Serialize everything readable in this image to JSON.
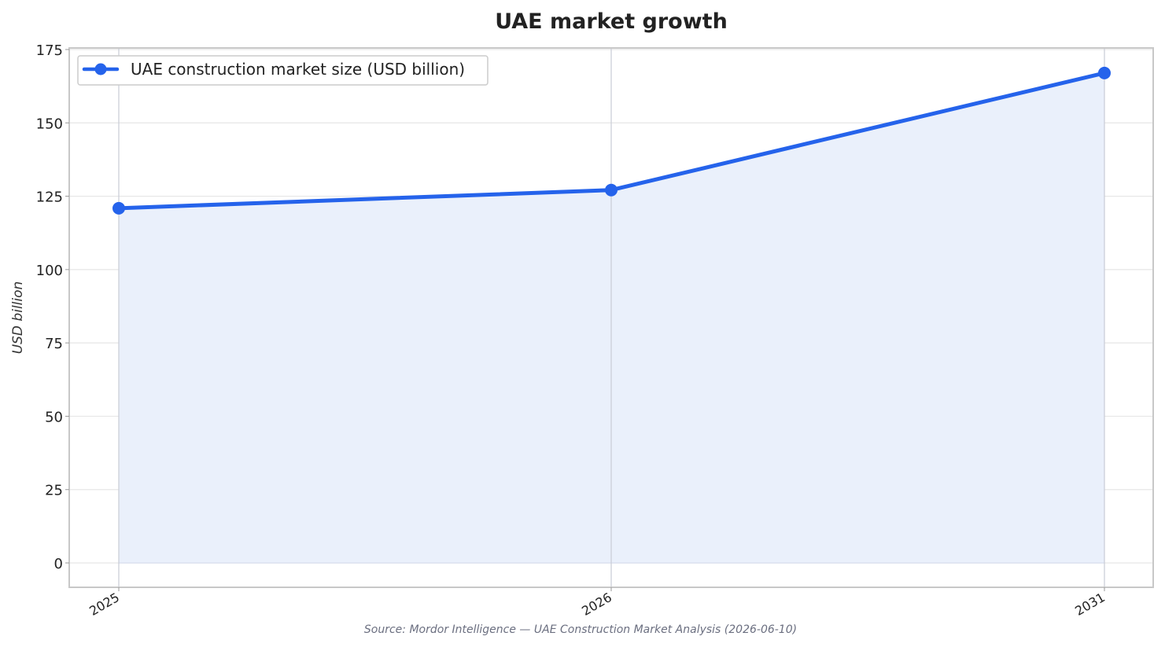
{
  "chart_data": {
    "type": "area",
    "title": "UAE market growth",
    "xlabel": "",
    "ylabel": "USD billion",
    "categories": [
      "2025",
      "2026",
      "2031"
    ],
    "series": [
      {
        "name": "UAE construction market size (USD billion)",
        "values": [
          120.9,
          127.1,
          167.0
        ],
        "color": "#2563eb",
        "fill_color": "#eaf0fb"
      }
    ],
    "yticks": [
      0,
      25,
      50,
      75,
      100,
      125,
      150,
      175
    ],
    "ylim": [
      -8,
      175
    ],
    "grid": true,
    "legend_position": "top-left",
    "source": "Source: Mordor Intelligence — UAE Construction Market Analysis (2026-06-10)"
  }
}
